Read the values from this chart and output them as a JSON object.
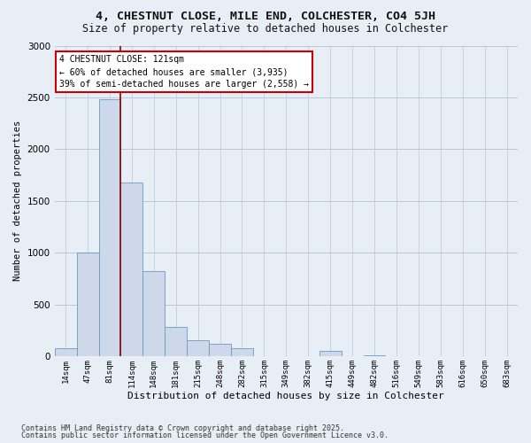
{
  "title_line1": "4, CHESTNUT CLOSE, MILE END, COLCHESTER, CO4 5JH",
  "title_line2": "Size of property relative to detached houses in Colchester",
  "xlabel": "Distribution of detached houses by size in Colchester",
  "ylabel": "Number of detached properties",
  "footnote1": "Contains HM Land Registry data © Crown copyright and database right 2025.",
  "footnote2": "Contains public sector information licensed under the Open Government Licence v3.0.",
  "annotation_title": "4 CHESTNUT CLOSE: 121sqm",
  "annotation_line1": "← 60% of detached houses are smaller (3,935)",
  "annotation_line2": "39% of semi-detached houses are larger (2,558) →",
  "bar_color": "#cdd9ea",
  "bar_edge_color": "#6a9abf",
  "vline_color": "#8b0000",
  "categories": [
    "14sqm",
    "47sqm",
    "81sqm",
    "114sqm",
    "148sqm",
    "181sqm",
    "215sqm",
    "248sqm",
    "282sqm",
    "315sqm",
    "349sqm",
    "382sqm",
    "415sqm",
    "449sqm",
    "482sqm",
    "516sqm",
    "549sqm",
    "583sqm",
    "616sqm",
    "650sqm",
    "683sqm"
  ],
  "values": [
    75,
    1000,
    2480,
    1680,
    820,
    280,
    150,
    120,
    75,
    0,
    0,
    0,
    50,
    0,
    8,
    0,
    0,
    0,
    0,
    0,
    0
  ],
  "ylim": [
    0,
    3000
  ],
  "yticks": [
    0,
    500,
    1000,
    1500,
    2000,
    2500,
    3000
  ],
  "background_color": "#e8eef5",
  "grid_color": "#d8e2ec",
  "vline_bar_index": 2.5
}
